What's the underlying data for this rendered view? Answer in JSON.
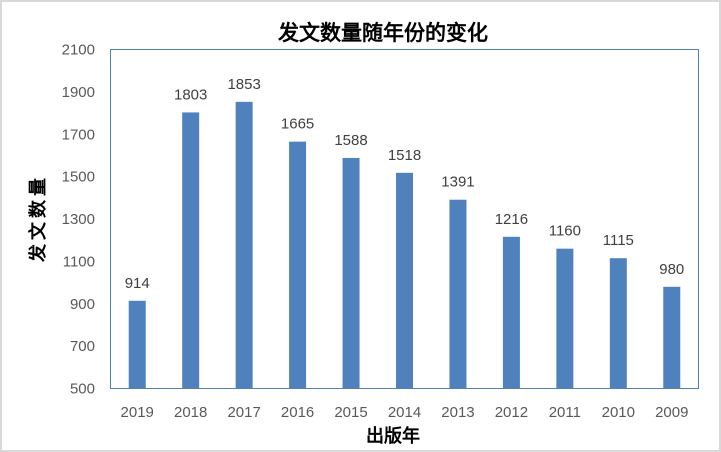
{
  "chart_data": {
    "type": "bar",
    "title": "发文数量随年份的变化",
    "xlabel": "出版年",
    "ylabel": "发文数量",
    "categories": [
      "2019",
      "2018",
      "2017",
      "2016",
      "2015",
      "2014",
      "2013",
      "2012",
      "2011",
      "2010",
      "2009"
    ],
    "values": [
      914,
      1803,
      1853,
      1665,
      1588,
      1518,
      1391,
      1216,
      1160,
      1115,
      980
    ],
    "ylim": [
      500,
      2100
    ],
    "yticks": [
      500,
      700,
      900,
      1100,
      1300,
      1500,
      1700,
      1900,
      2100
    ],
    "grid": false,
    "legend": "none",
    "bar_color": "#4f81bd",
    "plot_border_color": "#4f81bd"
  }
}
